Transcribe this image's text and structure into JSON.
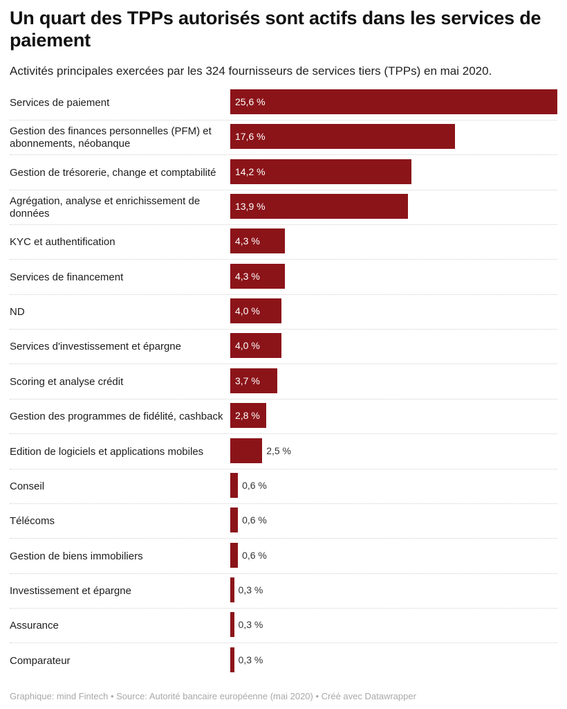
{
  "title": "Un quart des TPPs autorisés sont actifs dans les services de paiement",
  "subtitle": "Activités principales exercées par les 324 fournisseurs de services tiers (TPPs) en mai 2020.",
  "footer": "Graphique: mind Fintech • Source: Autorité bancaire européenne (mai 2020) • Créé avec Datawrapper",
  "colors": {
    "bar": "#8b1419",
    "label_inside": "#ffffff",
    "label_outside": "#333333"
  },
  "chart_data": {
    "type": "bar",
    "orientation": "horizontal",
    "xlim": [
      0,
      25.6
    ],
    "grid": false,
    "categories": [
      "Services de paiement",
      "Gestion des finances personnelles (PFM) et abonnements, néobanque",
      "Gestion de trésorerie, change et comptabilité",
      "Agrégation, analyse et enrichissement de données",
      "KYC et authentification",
      "Services de financement",
      "ND",
      "Services d'investissement et épargne",
      "Scoring et analyse crédit",
      "Gestion des programmes de fidélité, cashback",
      "Edition de logiciels et applications mobiles",
      "Conseil",
      "Télécoms",
      "Gestion de biens immobiliers",
      "Investissement et épargne",
      "Assurance",
      "Comparateur"
    ],
    "values": [
      25.6,
      17.6,
      14.2,
      13.9,
      4.3,
      4.3,
      4.0,
      4.0,
      3.7,
      2.8,
      2.5,
      0.6,
      0.6,
      0.6,
      0.3,
      0.3,
      0.3
    ],
    "value_labels": [
      "25,6 %",
      "17,6 %",
      "14,2 %",
      "13,9 %",
      "4,3 %",
      "4,3 %",
      "4,0 %",
      "4,0 %",
      "3,7 %",
      "2,8 %",
      "2,5 %",
      "0,6 %",
      "0,6 %",
      "0,6 %",
      "0,3 %",
      "0,3 %",
      "0,3 %"
    ]
  }
}
